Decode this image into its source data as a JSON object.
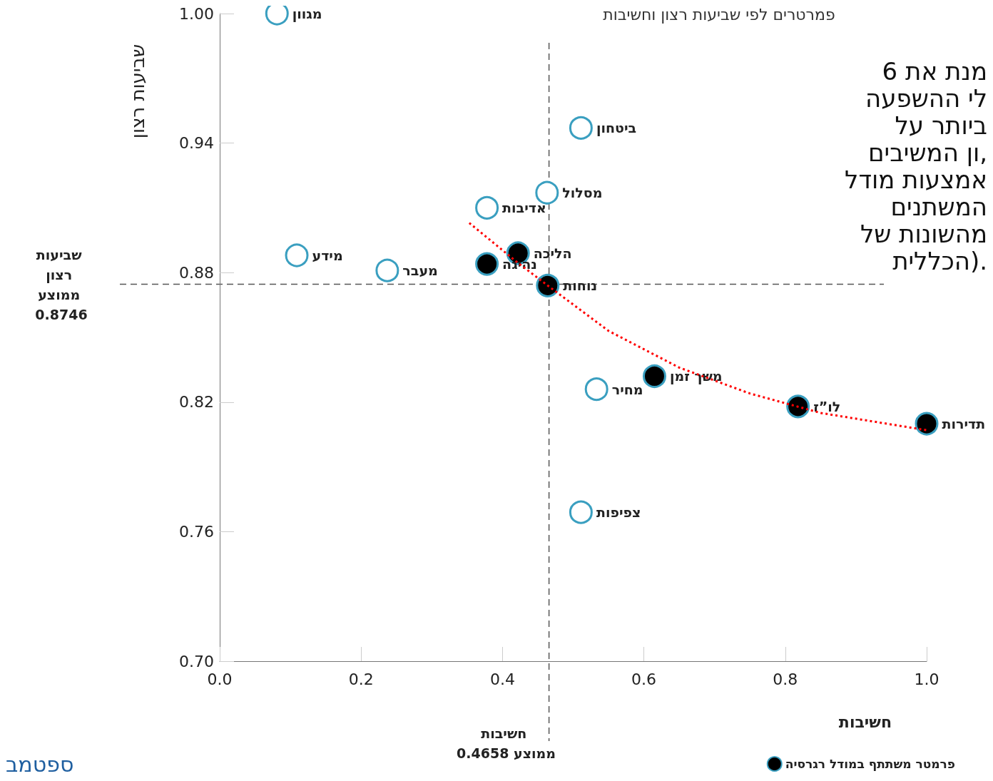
{
  "chart_data": {
    "type": "scatter",
    "title": "פמרטרים לפי שביעות רצון וחשיבות",
    "xlabel": "חשיבות",
    "ylabel": "שביעות רצון",
    "xlim": [
      0,
      1
    ],
    "ylim": [
      0.7,
      1
    ],
    "xticks": [
      {
        "value": 0,
        "label": "0.0"
      },
      {
        "value": 0.2,
        "label": "0.2"
      },
      {
        "value": 0.4,
        "label": "0.4"
      },
      {
        "value": 0.6,
        "label": "0.6"
      },
      {
        "value": 0.8,
        "label": "0.8"
      },
      {
        "value": 1,
        "label": "1.0"
      }
    ],
    "yticks": [
      {
        "value": 0.7,
        "label": "0.70"
      },
      {
        "value": 0.76,
        "label": "0.76"
      },
      {
        "value": 0.82,
        "label": "0.82"
      },
      {
        "value": 0.88,
        "label": "0.88"
      },
      {
        "value": 0.94,
        "label": "0.94"
      },
      {
        "value": 1,
        "label": "1.00"
      }
    ],
    "grid": false,
    "legend": "bottom right",
    "marker": "circle",
    "series": [
      {
        "color": "#3a9fc0",
        "x": [
          0.081,
          0.511,
          0.463,
          0.378,
          0.109,
          0.237,
          0.533,
          0.511
        ],
        "values": [
          1.0,
          0.947,
          0.917,
          0.91,
          0.888,
          0.881,
          0.826,
          0.769
        ],
        "value_labels": [
          "מגוון",
          "ביטחון",
          "מסלול",
          "אדיבות",
          "מידע",
          "מעבר",
          "מחיר",
          "צפיפות"
        ]
      },
      {
        "name": "פרמטר משתתף במודל רגרסיה",
        "color": "#000000",
        "x": [
          0.378,
          0.422,
          0.464,
          0.615,
          0.818,
          1.0
        ],
        "values": [
          0.884,
          0.889,
          0.874,
          0.832,
          0.818,
          0.81
        ],
        "value_labels": [
          "נהיגה",
          "הליכה",
          "נוחות",
          "משך זמן",
          "לו”ז",
          "תדירות"
        ]
      },
      {
        "type": "line",
        "color": "#ff0000",
        "line_style": "dotted",
        "marker": "none",
        "x": [
          0.353,
          0.42,
          0.464,
          0.55,
          0.65,
          0.75,
          0.85,
          1.0
        ],
        "values": [
          0.903,
          0.885,
          0.874,
          0.853,
          0.836,
          0.824,
          0.815,
          0.807
        ]
      }
    ],
    "ref_lines": [
      {
        "axis": "y",
        "value": 0.8746,
        "label": "שביעות רצון ממוצע 0.8746",
        "line_style": "dashed"
      },
      {
        "axis": "x",
        "value": 0.4658,
        "label": "חשיבות ממוצע 0.4658",
        "line_style": "dashed"
      }
    ],
    "annotations": [
      "מנת את 6",
      "לי ההשפעה",
      "ביותר על",
      "ון המשיבים,",
      "אמצעות מודל",
      "המשתנים",
      "מהשונות של",
      "הכללית).",
      "ספטמב"
    ]
  }
}
